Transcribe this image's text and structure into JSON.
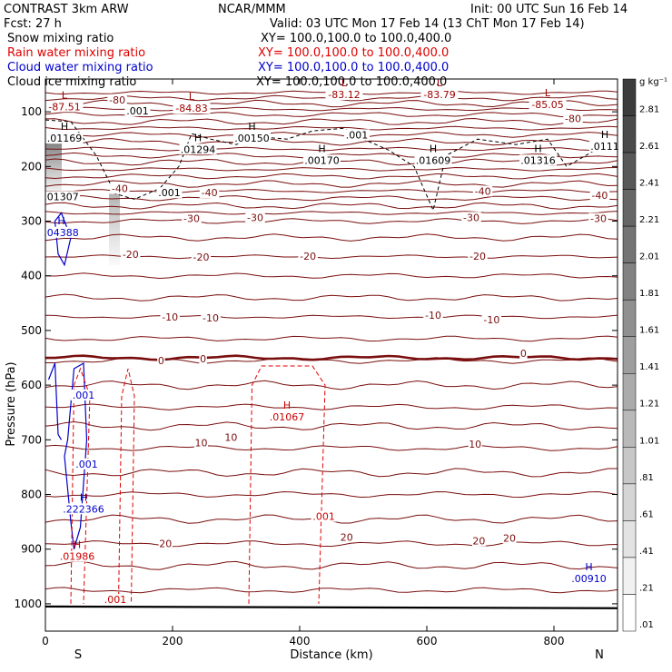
{
  "header": {
    "model": "CONTRAST  3km ARW",
    "center": "NCAR/MMM",
    "init": "Init: 00 UTC Sun 16 Feb 14",
    "fcst": "Fcst:    27 h",
    "valid": "Valid: 03 UTC Mon 17 Feb 14 (13 ChT Mon 17 Feb 14)"
  },
  "legend": [
    {
      "label": "Snow mixing ratio",
      "color": "#000000",
      "xy": "XY= 100.0,100.0 to 100.0,400.0"
    },
    {
      "label": "Rain water mixing ratio",
      "color": "#e00000",
      "xy": "XY= 100.0,100.0 to 100.0,400.0"
    },
    {
      "label": "Cloud water mixing ratio",
      "color": "#0000cc",
      "xy": "XY= 100.0,100.0 to 100.0,400.0"
    },
    {
      "label": "Cloud ice mixing ratio",
      "color": "#000000",
      "xy": "XY= 100.0,100.0 to 100.0,400.0"
    }
  ],
  "chart_data": {
    "type": "cross-section",
    "xlabel": "Distance (km)",
    "ylabel": "Pressure (hPa)",
    "x_ticks": [
      "0",
      "200",
      "400",
      "600",
      "800"
    ],
    "y_ticks": [
      "100",
      "200",
      "300",
      "400",
      "500",
      "600",
      "700",
      "800",
      "900",
      "1000"
    ],
    "x_end_labels": [
      "S",
      "N"
    ],
    "xlim": [
      0,
      900
    ],
    "ylim": [
      1050,
      40
    ],
    "colorbar": {
      "unit": "g kg⁻¹",
      "labels": [
        "2.81",
        "2.61",
        "2.41",
        "2.21",
        "2.01",
        "1.81",
        "1.61",
        "1.41",
        "1.21",
        "1.01",
        ".81",
        ".61",
        ".41",
        ".21",
        ".01"
      ]
    },
    "temperature_labels": [
      {
        "text": "-80",
        "x": 113,
        "p": 78
      },
      {
        "text": "-80",
        "x": 830,
        "p": 112
      },
      {
        "text": "-40",
        "x": 117,
        "p": 240
      },
      {
        "text": "-40",
        "x": 258,
        "p": 248
      },
      {
        "text": "-40",
        "x": 688,
        "p": 245
      },
      {
        "text": "-40",
        "x": 872,
        "p": 253
      },
      {
        "text": "-30",
        "x": 230,
        "p": 295
      },
      {
        "text": "-30",
        "x": 330,
        "p": 293
      },
      {
        "text": "-30",
        "x": 670,
        "p": 293
      },
      {
        "text": "-30",
        "x": 870,
        "p": 295
      },
      {
        "text": "-20",
        "x": 134,
        "p": 361
      },
      {
        "text": "-20",
        "x": 245,
        "p": 366
      },
      {
        "text": "-20",
        "x": 413,
        "p": 364
      },
      {
        "text": "-20",
        "x": 680,
        "p": 364
      },
      {
        "text": "-10",
        "x": 196,
        "p": 475
      },
      {
        "text": "-10",
        "x": 260,
        "p": 477
      },
      {
        "text": "-10",
        "x": 610,
        "p": 472
      },
      {
        "text": "-10",
        "x": 702,
        "p": 480
      },
      {
        "text": "0",
        "x": 182,
        "p": 555
      },
      {
        "text": "0",
        "x": 248,
        "p": 552
      },
      {
        "text": "0",
        "x": 752,
        "p": 542
      },
      {
        "text": "10",
        "x": 245,
        "p": 705
      },
      {
        "text": "10",
        "x": 292,
        "p": 695
      },
      {
        "text": "10",
        "x": 676,
        "p": 708
      },
      {
        "text": "20",
        "x": 189,
        "p": 890
      },
      {
        "text": "20",
        "x": 474,
        "p": 878
      },
      {
        "text": "20",
        "x": 682,
        "p": 885
      },
      {
        "text": "20",
        "x": 730,
        "p": 880
      }
    ],
    "temperature_levels_hPa": [
      555,
      600,
      640,
      675,
      715,
      760,
      800,
      845,
      890,
      930,
      975
    ],
    "upper_levels_hPa": [
      65,
      75,
      85,
      95,
      105,
      118,
      130,
      142,
      155,
      168,
      180,
      192,
      205,
      218,
      232,
      245,
      258,
      272,
      285,
      300,
      330,
      365,
      400,
      440,
      475,
      515
    ],
    "extrema": [
      {
        "kind": "L",
        "value": "-87.51",
        "x": 30,
        "p": 92,
        "color": "#a00000"
      },
      {
        "kind": "L",
        "value": "-84.83",
        "x": 230,
        "p": 95,
        "color": "#a00000"
      },
      {
        "kind": "L",
        "value": "-83.12",
        "x": 470,
        "p": 70,
        "color": "#a00000"
      },
      {
        "kind": "L",
        "value": "-83.79",
        "x": 620,
        "p": 70,
        "color": "#a00000"
      },
      {
        "kind": "L",
        "value": "-85.05",
        "x": 790,
        "p": 88,
        "color": "#a00000"
      },
      {
        "kind": "H",
        "value": ".01169",
        "x": 30,
        "p": 150,
        "color": "#000000"
      },
      {
        "kind": "H",
        "value": ".01294",
        "x": 240,
        "p": 170,
        "color": "#000000"
      },
      {
        "kind": "H",
        "value": ".00150",
        "x": 325,
        "p": 150,
        "color": "#000000"
      },
      {
        "kind": "H",
        "value": ".00170",
        "x": 435,
        "p": 190,
        "color": "#000000"
      },
      {
        "kind": "H",
        "value": ".01609",
        "x": 610,
        "p": 190,
        "color": "#000000"
      },
      {
        "kind": "H",
        "value": ".01316",
        "x": 775,
        "p": 190,
        "color": "#000000"
      },
      {
        "kind": "H",
        "value": ".0111",
        "x": 880,
        "p": 165,
        "color": "#000000"
      },
      {
        "kind": "H",
        "value": ".04388",
        "x": 25,
        "p": 322,
        "color": "#0000cc"
      },
      {
        "kind": "H",
        "value": ".01067",
        "x": 380,
        "p": 660,
        "color": "#cc0000"
      },
      {
        "kind": "H",
        "value": ".222366",
        "x": 60,
        "p": 828,
        "color": "#0000cc"
      },
      {
        "kind": "H",
        "value": ".01986",
        "x": 50,
        "p": 915,
        "color": "#cc0000"
      },
      {
        "kind": "H",
        "value": ".00910",
        "x": 855,
        "p": 955,
        "color": "#0000cc"
      }
    ],
    "snow_ice_labels": [
      {
        "text": ".001",
        "x": 145,
        "p": 98
      },
      {
        "text": ".001",
        "x": 490,
        "p": 142
      },
      {
        "text": ".001",
        "x": 195,
        "p": 248
      },
      {
        "text": ".01307",
        "x": 25,
        "p": 255
      }
    ],
    "cloud_water_labels": [
      {
        "text": ".001",
        "x": 60,
        "p": 618
      },
      {
        "text": ".001",
        "x": 65,
        "p": 744
      }
    ],
    "rain_labels": [
      {
        "text": ".001",
        "x": 438,
        "p": 840
      },
      {
        "text": ".001",
        "x": 110,
        "p": 992
      }
    ]
  }
}
